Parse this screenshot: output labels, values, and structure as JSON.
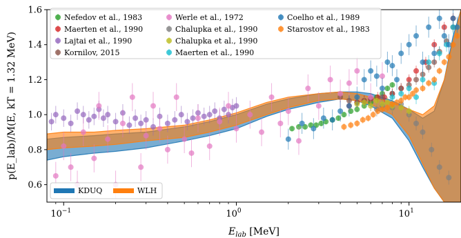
{
  "chart_data": {
    "type": "scatter",
    "xlabel_main": "E",
    "xlabel_sub": "lab",
    "xlabel_unit": " [MeV]",
    "ylabel": "p(E_lab)/M(E, kT = 1.32 MeV)",
    "xscale": "log",
    "xlim": [
      0.08,
      20
    ],
    "ylim": [
      0.5,
      1.6
    ],
    "x_ticks": [
      {
        "value": 0.1,
        "label": "10",
        "exp": "−1"
      },
      {
        "value": 1,
        "label": "10",
        "exp": "0"
      },
      {
        "value": 10,
        "label": "10",
        "exp": "1"
      }
    ],
    "y_ticks": [
      {
        "value": 0.6,
        "label": "0.6"
      },
      {
        "value": 0.8,
        "label": "0.8"
      },
      {
        "value": 1.0,
        "label": "1.0"
      },
      {
        "value": 1.2,
        "label": "1.2"
      },
      {
        "value": 1.4,
        "label": "1.4"
      },
      {
        "value": 1.6,
        "label": "1.6"
      }
    ],
    "legend_placement": "top",
    "band_legend_placement": "lower-left",
    "series": [
      {
        "name": "Nefedov et al., 1983",
        "color": "#2ca02c",
        "err": 0.015,
        "x": [
          2.1,
          2.3,
          2.5,
          2.7,
          2.9,
          3.1,
          3.3,
          3.6,
          3.9,
          4.2,
          4.6,
          5.0,
          5.5,
          6.0,
          6.5,
          7.0,
          7.5,
          8.0
        ],
        "y": [
          0.92,
          0.93,
          0.93,
          0.94,
          0.94,
          0.95,
          0.96,
          0.97,
          0.98,
          1.0,
          1.02,
          1.03,
          1.05,
          1.07,
          1.1,
          1.12,
          1.15,
          1.17
        ]
      },
      {
        "name": "Maerten et al., 1990",
        "color": "#d62728",
        "err": 0.03,
        "x": [
          4.5,
          5.0,
          5.5,
          6.0,
          6.6,
          7.2,
          8.0,
          9.0,
          10.0,
          11.0,
          12.5,
          14.0,
          16.0,
          18.0
        ],
        "y": [
          1.05,
          1.07,
          1.08,
          1.09,
          1.1,
          1.1,
          1.12,
          1.15,
          1.2,
          1.25,
          1.3,
          1.4,
          1.5,
          1.55
        ]
      },
      {
        "name": "Lajtai et al., 1990",
        "color": "#9467bd",
        "err": 0.05,
        "x": [
          0.085,
          0.09,
          0.1,
          0.11,
          0.12,
          0.13,
          0.14,
          0.15,
          0.16,
          0.17,
          0.18,
          0.2,
          0.22,
          0.24,
          0.26,
          0.28,
          0.3,
          0.33,
          0.36,
          0.4,
          0.44,
          0.48,
          0.52,
          0.56,
          0.6,
          0.65,
          0.7,
          0.75,
          0.8,
          0.85,
          0.9,
          0.95,
          1.0
        ],
        "y": [
          0.96,
          1.0,
          0.98,
          0.95,
          1.02,
          1.0,
          0.97,
          0.99,
          1.03,
          0.98,
          1.0,
          0.96,
          1.01,
          0.94,
          0.98,
          0.95,
          0.97,
          0.93,
          0.99,
          0.95,
          0.97,
          1.0,
          0.96,
          0.98,
          1.01,
          0.99,
          1.0,
          1.02,
          0.98,
          1.03,
          1.0,
          1.04,
          1.05
        ]
      },
      {
        "name": "Kornilov, 2015",
        "color": "#8c564b",
        "err": 0.03,
        "x": [
          4.0,
          4.5,
          5.0,
          5.5,
          6.0,
          7.0,
          8.0,
          9.0,
          10.0,
          11.0,
          12.0,
          13.0,
          14.0,
          15.0,
          16.5,
          18.0
        ],
        "y": [
          1.1,
          1.08,
          1.07,
          1.08,
          1.09,
          1.1,
          1.12,
          1.15,
          1.17,
          1.2,
          1.23,
          1.27,
          1.3,
          1.36,
          1.42,
          1.5
        ]
      },
      {
        "name": "Werle et al., 1972",
        "color": "#e377c2",
        "err": 0.08,
        "x": [
          0.09,
          0.1,
          0.11,
          0.12,
          0.13,
          0.15,
          0.16,
          0.18,
          0.2,
          0.22,
          0.25,
          0.28,
          0.3,
          0.33,
          0.36,
          0.4,
          0.45,
          0.5,
          0.55,
          0.6,
          0.7,
          0.8,
          0.9,
          1.0,
          1.2,
          1.4,
          1.6,
          1.8,
          2.0,
          2.3,
          2.6,
          3.0,
          3.5,
          4.0,
          4.5,
          5.0,
          6.0,
          7.0
        ],
        "y": [
          0.65,
          0.82,
          0.7,
          0.6,
          0.9,
          0.75,
          1.05,
          0.86,
          0.6,
          0.95,
          1.1,
          0.7,
          0.88,
          1.05,
          0.92,
          0.8,
          1.1,
          0.86,
          0.78,
          0.98,
          0.82,
          0.96,
          1.05,
          0.92,
          1.0,
          0.9,
          1.1,
          0.95,
          1.02,
          0.85,
          1.15,
          1.05,
          1.2,
          1.12,
          1.18,
          1.25,
          1.1,
          1.22
        ]
      },
      {
        "name": "Chalupka et al., 1990",
        "color": "#7f7f7f",
        "err": 0.04,
        "x": [
          6.5,
          7.0,
          8.0,
          9.0,
          10.0,
          11.0,
          12.0,
          13.5,
          15.0,
          17.0
        ],
        "y": [
          1.03,
          1.05,
          1.04,
          1.06,
          1.0,
          0.95,
          0.9,
          0.8,
          0.7,
          0.64
        ]
      },
      {
        "name": "Chalupka et al., 1990",
        "color": "#bcbd22",
        "err": 0.03,
        "x": [
          5.0,
          5.5,
          6.0,
          6.5,
          7.0,
          7.5,
          8.0,
          9.0,
          10.0
        ],
        "y": [
          1.06,
          1.07,
          1.05,
          1.08,
          1.06,
          1.07,
          1.05,
          1.04,
          1.02
        ]
      },
      {
        "name": "Maerten et al., 1990",
        "color": "#17becf",
        "err": 0.04,
        "x": [
          8.0,
          9.0,
          10.0,
          11.0,
          12.0,
          13.0,
          14.0,
          15.0,
          16.5,
          18.0
        ],
        "y": [
          1.1,
          1.12,
          1.15,
          1.1,
          1.2,
          1.3,
          1.18,
          1.35,
          1.4,
          1.5
        ]
      },
      {
        "name": "Coelho et al., 1989",
        "color": "#1f77b4",
        "err": 0.06,
        "x": [
          2.0,
          2.4,
          2.8,
          3.2,
          3.6,
          4.0,
          4.5,
          5.0,
          5.5,
          6.0,
          6.5,
          7.0,
          7.5,
          8.0,
          8.5,
          9.0,
          10.0,
          11.0,
          12.0,
          13.0,
          14.0,
          15.0,
          16.0,
          17.0,
          18.0,
          19.0
        ],
        "y": [
          0.86,
          0.95,
          0.92,
          0.98,
          0.97,
          1.02,
          1.05,
          1.1,
          1.2,
          1.25,
          1.22,
          1.15,
          1.3,
          1.28,
          1.2,
          1.35,
          1.4,
          1.45,
          1.3,
          1.5,
          1.35,
          1.55,
          1.45,
          1.4,
          1.55,
          1.5
        ]
      },
      {
        "name": "Starostov et al., 1983",
        "color": "#ff7f0e",
        "err": 0.02,
        "x": [
          4.2,
          4.6,
          5.0,
          5.4,
          5.8,
          6.2,
          6.6,
          7.0,
          7.5,
          8.0,
          8.5,
          9.0,
          9.5,
          10.0,
          10.5,
          11.0,
          12.0,
          13.0,
          14.0,
          15.0,
          16.0,
          17.0,
          18.0,
          19.0
        ],
        "y": [
          0.93,
          0.94,
          0.95,
          0.97,
          0.98,
          1.0,
          1.02,
          1.03,
          1.04,
          1.06,
          1.07,
          1.08,
          1.1,
          1.1,
          1.12,
          1.14,
          1.15,
          1.18,
          1.2,
          1.25,
          1.3,
          1.33,
          1.4,
          1.45
        ]
      }
    ],
    "bands": [
      {
        "name": "KDUQ",
        "color": "#1f77b4",
        "opacity": 0.6,
        "x": [
          0.08,
          0.1,
          0.15,
          0.2,
          0.3,
          0.5,
          0.7,
          1.0,
          1.5,
          2.0,
          3.0,
          4.0,
          5.0,
          6.0,
          8.0,
          10.0,
          12.0,
          14.0,
          16.0,
          18.0,
          20.0
        ],
        "lower": [
          0.74,
          0.76,
          0.78,
          0.79,
          0.81,
          0.85,
          0.88,
          0.92,
          0.99,
          1.03,
          1.07,
          1.09,
          1.08,
          1.05,
          0.98,
          0.85,
          0.7,
          0.58,
          0.5,
          0.5,
          0.5
        ],
        "upper": [
          0.86,
          0.87,
          0.88,
          0.89,
          0.9,
          0.93,
          0.96,
          1.0,
          1.06,
          1.09,
          1.12,
          1.13,
          1.13,
          1.12,
          1.08,
          1.03,
          0.98,
          1.02,
          1.2,
          1.45,
          1.6
        ]
      },
      {
        "name": "WLH",
        "color": "#ff7f0e",
        "opacity": 0.6,
        "x": [
          0.08,
          0.1,
          0.15,
          0.2,
          0.3,
          0.5,
          0.7,
          1.0,
          1.5,
          2.0,
          3.0,
          4.0,
          5.0,
          6.0,
          8.0,
          10.0,
          12.0,
          14.0,
          16.0,
          18.0,
          20.0
        ],
        "lower": [
          0.8,
          0.81,
          0.82,
          0.83,
          0.85,
          0.87,
          0.9,
          0.94,
          1.0,
          1.04,
          1.08,
          1.09,
          1.08,
          1.06,
          1.0,
          0.88,
          0.72,
          0.58,
          0.5,
          0.5,
          0.5
        ],
        "upper": [
          0.89,
          0.9,
          0.9,
          0.91,
          0.92,
          0.94,
          0.97,
          1.01,
          1.07,
          1.1,
          1.12,
          1.13,
          1.12,
          1.1,
          1.07,
          1.03,
          1.0,
          1.05,
          1.2,
          1.42,
          1.6
        ]
      }
    ]
  }
}
